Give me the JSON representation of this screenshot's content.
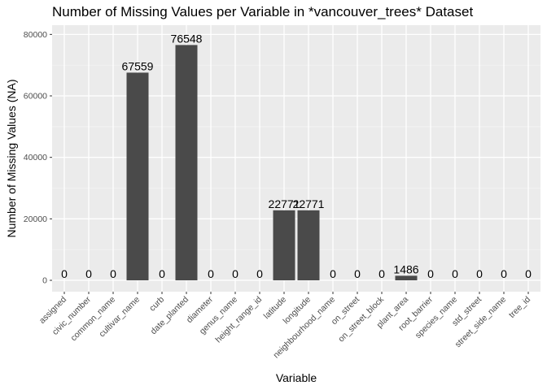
{
  "chart_data": {
    "type": "bar",
    "title": "Number of Missing Values per Variable in *vancouver_trees* Dataset",
    "xlabel": "Variable",
    "ylabel": "Number of Missing Values (NA)",
    "ylim": [
      0,
      83000
    ],
    "yticks": [
      0,
      20000,
      40000,
      60000,
      80000
    ],
    "grid": true,
    "panel_color": "#ebebeb",
    "bar_color": "#4a4a4a",
    "categories": [
      "assigned",
      "civic_number",
      "common_name",
      "cultivar_name",
      "curb",
      "date_planted",
      "diameter",
      "genus_name",
      "height_range_id",
      "latitude",
      "longitude",
      "neighbourhood_name",
      "on_street",
      "on_street_block",
      "plant_area",
      "root_barrier",
      "species_name",
      "std_street",
      "street_side_name",
      "tree_id"
    ],
    "values": [
      0,
      0,
      0,
      67559,
      0,
      76548,
      0,
      0,
      0,
      22771,
      22771,
      0,
      0,
      0,
      1486,
      0,
      0,
      0,
      0,
      0
    ]
  }
}
